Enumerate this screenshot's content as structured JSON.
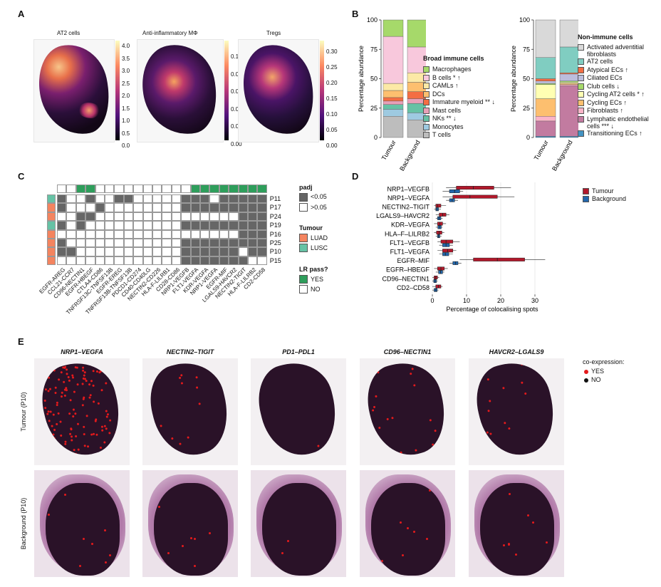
{
  "panels": {
    "a": {
      "label": "A",
      "maps": [
        {
          "title": "AT2 cells",
          "ticks": [
            "4.0",
            "3.5",
            "3.0",
            "2.5",
            "2.0",
            "1.5",
            "1.0",
            "0.5",
            "0.0"
          ]
        },
        {
          "title": "Anti-inflammatory MΦ",
          "ticks": [
            "0.10",
            "0.08",
            "0.06",
            "0.04",
            "0.02",
            "0.00"
          ]
        },
        {
          "title": "Tregs",
          "ticks": [
            "0.30",
            "0.25",
            "0.20",
            "0.15",
            "0.10",
            "0.05",
            "0.00"
          ]
        }
      ]
    },
    "b": {
      "label": "B",
      "ylabel": "Percentage abundance",
      "yticks": [
        "100",
        "75",
        "50",
        "25",
        "0"
      ],
      "xcats": [
        "Tumour",
        "Background"
      ],
      "immune_title": "Broad immune cells",
      "immune_legend": [
        {
          "label": "Macrophages",
          "color": "#a6d96a"
        },
        {
          "label": "B cells * ↑",
          "color": "#f8c8dc"
        },
        {
          "label": "CAMLs ↑",
          "color": "#fce9a6"
        },
        {
          "label": "DCs",
          "color": "#fdbf6f"
        },
        {
          "label": "Immature myeloid ** ↓",
          "color": "#f46d43"
        },
        {
          "label": "Mast cells",
          "color": "#e8a0b8"
        },
        {
          "label": "NKs ** ↓",
          "color": "#66c2a5"
        },
        {
          "label": "Monocytes",
          "color": "#9ecae1"
        },
        {
          "label": "T cells",
          "color": "#bdbdbd"
        }
      ],
      "nonimmune_title": "Non-immune cells",
      "nonimmune_legend": [
        {
          "label": "Activated adventitial fibroblasts",
          "color": "#d9d9d9"
        },
        {
          "label": "AT2 cells",
          "color": "#80cdc1"
        },
        {
          "label": "Atypical ECs ↑",
          "color": "#f46d43"
        },
        {
          "label": "Ciliated ECs",
          "color": "#bcbddc"
        },
        {
          "label": "Club cells ↓",
          "color": "#a6d96a"
        },
        {
          "label": "Cycling AT2 cells * ↑",
          "color": "#ffffb3"
        },
        {
          "label": "Cycling ECs ↑",
          "color": "#fdbf6f"
        },
        {
          "label": "Fibroblasts ↑",
          "color": "#fbb4c8"
        },
        {
          "label": "Lymphatic endothelial cells *** ↓",
          "color": "#c27ba0"
        },
        {
          "label": "Transitioning ECs ↑",
          "color": "#4393c3"
        }
      ]
    },
    "c": {
      "label": "C",
      "rows": [
        "P11",
        "P17",
        "P24",
        "P19",
        "P16",
        "P25",
        "P10",
        "P15"
      ],
      "cols": [
        "EGFR-AREG",
        "CCL21-CCR7",
        "CD96-NECTIN1",
        "EGFR-HBEGF",
        "CTLA4-CD86",
        "TNFRSF13C-TNFSF13B",
        "EGFR-EREG",
        "TNFRSF13B-TNFSF13B",
        "PDCD1-CD274",
        "CD40-CD40LG",
        "NECTIN2-CD226",
        "HLA-F-LILRB1",
        "CD28-CD86",
        "NRP1-VEGFB",
        "FLT1-VEGFA",
        "KDR-VEGFA",
        "NRP1-VEGFA",
        "EGFR-MIF",
        "LGALS9-HAVCR2",
        "NECTIN2-TIGIT",
        "HLA-F-LILRB2",
        "CD2-CD58"
      ],
      "row_tumour": [
        "LUSC",
        "LUAD",
        "LUAD",
        "LUSC",
        "LUAD",
        "LUAD",
        "LUAD",
        "LUAD"
      ],
      "lr_pass": [
        0,
        0,
        1,
        1,
        0,
        0,
        0,
        0,
        0,
        0,
        0,
        0,
        0,
        0,
        1,
        1,
        1,
        1,
        1,
        1,
        1,
        1
      ],
      "padj_grid": [
        [
          1,
          0,
          0,
          1,
          0,
          0,
          1,
          1,
          0,
          0,
          0,
          0,
          0,
          1,
          1,
          1,
          0,
          1,
          1,
          1,
          1,
          1
        ],
        [
          1,
          0,
          0,
          0,
          1,
          0,
          0,
          0,
          0,
          0,
          0,
          0,
          0,
          1,
          1,
          1,
          1,
          1,
          1,
          1,
          1,
          1
        ],
        [
          0,
          0,
          1,
          1,
          0,
          0,
          0,
          0,
          0,
          0,
          0,
          0,
          0,
          0,
          0,
          0,
          0,
          0,
          0,
          1,
          1,
          1
        ],
        [
          1,
          0,
          1,
          0,
          0,
          0,
          0,
          0,
          0,
          0,
          0,
          0,
          0,
          1,
          1,
          1,
          1,
          1,
          1,
          1,
          1,
          1
        ],
        [
          0,
          0,
          0,
          0,
          0,
          0,
          0,
          0,
          0,
          0,
          0,
          0,
          0,
          0,
          0,
          0,
          0,
          0,
          0,
          1,
          1,
          1
        ],
        [
          1,
          0,
          0,
          0,
          0,
          0,
          0,
          0,
          0,
          0,
          0,
          0,
          0,
          1,
          1,
          1,
          1,
          1,
          1,
          1,
          1,
          1
        ],
        [
          1,
          1,
          0,
          0,
          0,
          0,
          0,
          0,
          0,
          0,
          0,
          0,
          0,
          1,
          1,
          1,
          1,
          1,
          1,
          0,
          1,
          1
        ],
        [
          0,
          0,
          0,
          0,
          0,
          0,
          0,
          0,
          0,
          0,
          0,
          0,
          0,
          1,
          1,
          1,
          1,
          1,
          1,
          1,
          0,
          0
        ]
      ],
      "legend": {
        "padj_title": "padj",
        "padj_items": [
          {
            "label": "<0.05",
            "color": "#666666"
          },
          {
            "label": ">0.05",
            "color": "#ffffff"
          }
        ],
        "tumour_title": "Tumour",
        "tumour_items": [
          {
            "label": "LUAD",
            "color": "#f4845f"
          },
          {
            "label": "LUSC",
            "color": "#66c2a5"
          }
        ],
        "lr_title": "LR pass?",
        "lr_items": [
          {
            "label": "YES",
            "color": "#2e9e5b"
          },
          {
            "label": "NO",
            "color": "#ffffff"
          }
        ]
      }
    },
    "d": {
      "label": "D",
      "xlabel": "Percentage of colocalising spots",
      "legend": [
        {
          "label": "Tumour",
          "color": "#b2182b"
        },
        {
          "label": "Background",
          "color": "#2166ac"
        }
      ]
    },
    "e": {
      "label": "E",
      "columns": [
        "NRP1–VEGFA",
        "NECTIN2–TIGIT",
        "PD1–PDL1",
        "CD96–NECTIN1",
        "HAVCR2–LGALS9"
      ],
      "rows": [
        "Tumour (P10)",
        "Background (P10)"
      ],
      "legend_title": "co-expression:",
      "legend_items": [
        {
          "label": "YES",
          "color": "#e41a1c"
        },
        {
          "label": "NO",
          "color": "#111111"
        }
      ]
    }
  },
  "chart_data": [
    {
      "type": "bar",
      "title": "Broad immune cells",
      "ylabel": "Percentage abundance",
      "ylim": [
        0,
        100
      ],
      "categories": [
        "Tumour",
        "Background"
      ],
      "series": [
        {
          "name": "T cells",
          "values": [
            18,
            15
          ]
        },
        {
          "name": "Monocytes",
          "values": [
            6,
            6
          ]
        },
        {
          "name": "NKs ** ↓",
          "values": [
            4,
            8
          ]
        },
        {
          "name": "Mast cells",
          "values": [
            3,
            4
          ]
        },
        {
          "name": "Immature myeloid ** ↓",
          "values": [
            3,
            6
          ]
        },
        {
          "name": "DCs",
          "values": [
            6,
            8
          ]
        },
        {
          "name": "CAMLs ↑",
          "values": [
            6,
            8
          ]
        },
        {
          "name": "B cells * ↑",
          "values": [
            40,
            22
          ]
        },
        {
          "name": "Macrophages",
          "values": [
            14,
            23
          ]
        }
      ]
    },
    {
      "type": "bar",
      "title": "Non-immune cells",
      "ylabel": "Percentage abundance",
      "ylim": [
        0,
        100
      ],
      "categories": [
        "Tumour",
        "Background"
      ],
      "series": [
        {
          "name": "Transitioning ECs ↑",
          "values": [
            1,
            1
          ]
        },
        {
          "name": "Lymphatic endothelial cells *** ↓",
          "values": [
            13,
            43
          ]
        },
        {
          "name": "Fibroblasts ↑",
          "values": [
            4,
            1
          ]
        },
        {
          "name": "Cycling ECs ↑",
          "values": [
            15,
            1
          ]
        },
        {
          "name": "Cycling AT2 cells * ↑",
          "values": [
            12,
            1
          ]
        },
        {
          "name": "Club cells ↓",
          "values": [
            1,
            1
          ]
        },
        {
          "name": "Ciliated ECs",
          "values": [
            2,
            6
          ]
        },
        {
          "name": "Atypical ECs ↑",
          "values": [
            2,
            1
          ]
        },
        {
          "name": "AT2 cells",
          "values": [
            18,
            22
          ]
        },
        {
          "name": "Activated adventitial fibroblasts",
          "values": [
            32,
            23
          ]
        }
      ]
    },
    {
      "type": "box",
      "xlabel": "Percentage of colocalising spots",
      "xlim": [
        0,
        35
      ],
      "xticks": [
        0,
        10,
        20,
        30
      ],
      "categories": [
        "NRP1–VEGFB",
        "NRP1–VEGFA",
        "NECTIN2–TIGIT",
        "LGALS9–HAVCR2",
        "KDR–VEGFA",
        "HLA–F–LILRB2",
        "FLT1–VEGFB",
        "FLT1–VEGFA",
        "EGFR–MIF",
        "EGFR–HBEGF",
        "CD96–NECTIN1",
        "CD2–CD58"
      ],
      "series": [
        {
          "name": "Tumour",
          "boxes": [
            [
              4,
              7,
              12,
              18,
              23
            ],
            [
              3,
              6,
              11,
              19,
              24
            ],
            [
              0.5,
              1,
              1.5,
              2.5,
              4
            ],
            [
              1,
              2,
              3,
              4,
              5
            ],
            [
              0.5,
              1.5,
              2.2,
              3,
              4
            ],
            [
              0.5,
              1.2,
              2,
              2.8,
              3.5
            ],
            [
              1.5,
              2.5,
              4,
              6,
              8
            ],
            [
              1.5,
              3,
              4.5,
              6,
              7
            ],
            [
              8,
              12,
              19,
              27,
              33
            ],
            [
              0.5,
              1.5,
              2.5,
              3.5,
              4.5
            ],
            [
              0,
              0.5,
              1,
              1.5,
              2
            ],
            [
              0,
              1,
              1.8,
              2.5,
              3
            ]
          ]
        },
        {
          "name": "Background",
          "boxes": [
            [
              3,
              5,
              6.5,
              8,
              9
            ],
            [
              4,
              5,
              5.8,
              6.5,
              7.5
            ],
            [
              0.5,
              1,
              1.3,
              1.8,
              2.5
            ],
            [
              1,
              1.5,
              2,
              2.5,
              3
            ],
            [
              1,
              1.6,
              2.1,
              2.6,
              3
            ],
            [
              1,
              1.5,
              1.8,
              2.2,
              2.7
            ],
            [
              2,
              3,
              4,
              5,
              6
            ],
            [
              2,
              3,
              3.8,
              4.8,
              6
            ],
            [
              5,
              6,
              6.8,
              7.5,
              8.5
            ],
            [
              1,
              1.8,
              2.4,
              3,
              3.5
            ],
            [
              0,
              0.4,
              0.8,
              1.2,
              1.6
            ],
            [
              0,
              0.5,
              1,
              1.4,
              1.8
            ]
          ]
        }
      ]
    }
  ]
}
